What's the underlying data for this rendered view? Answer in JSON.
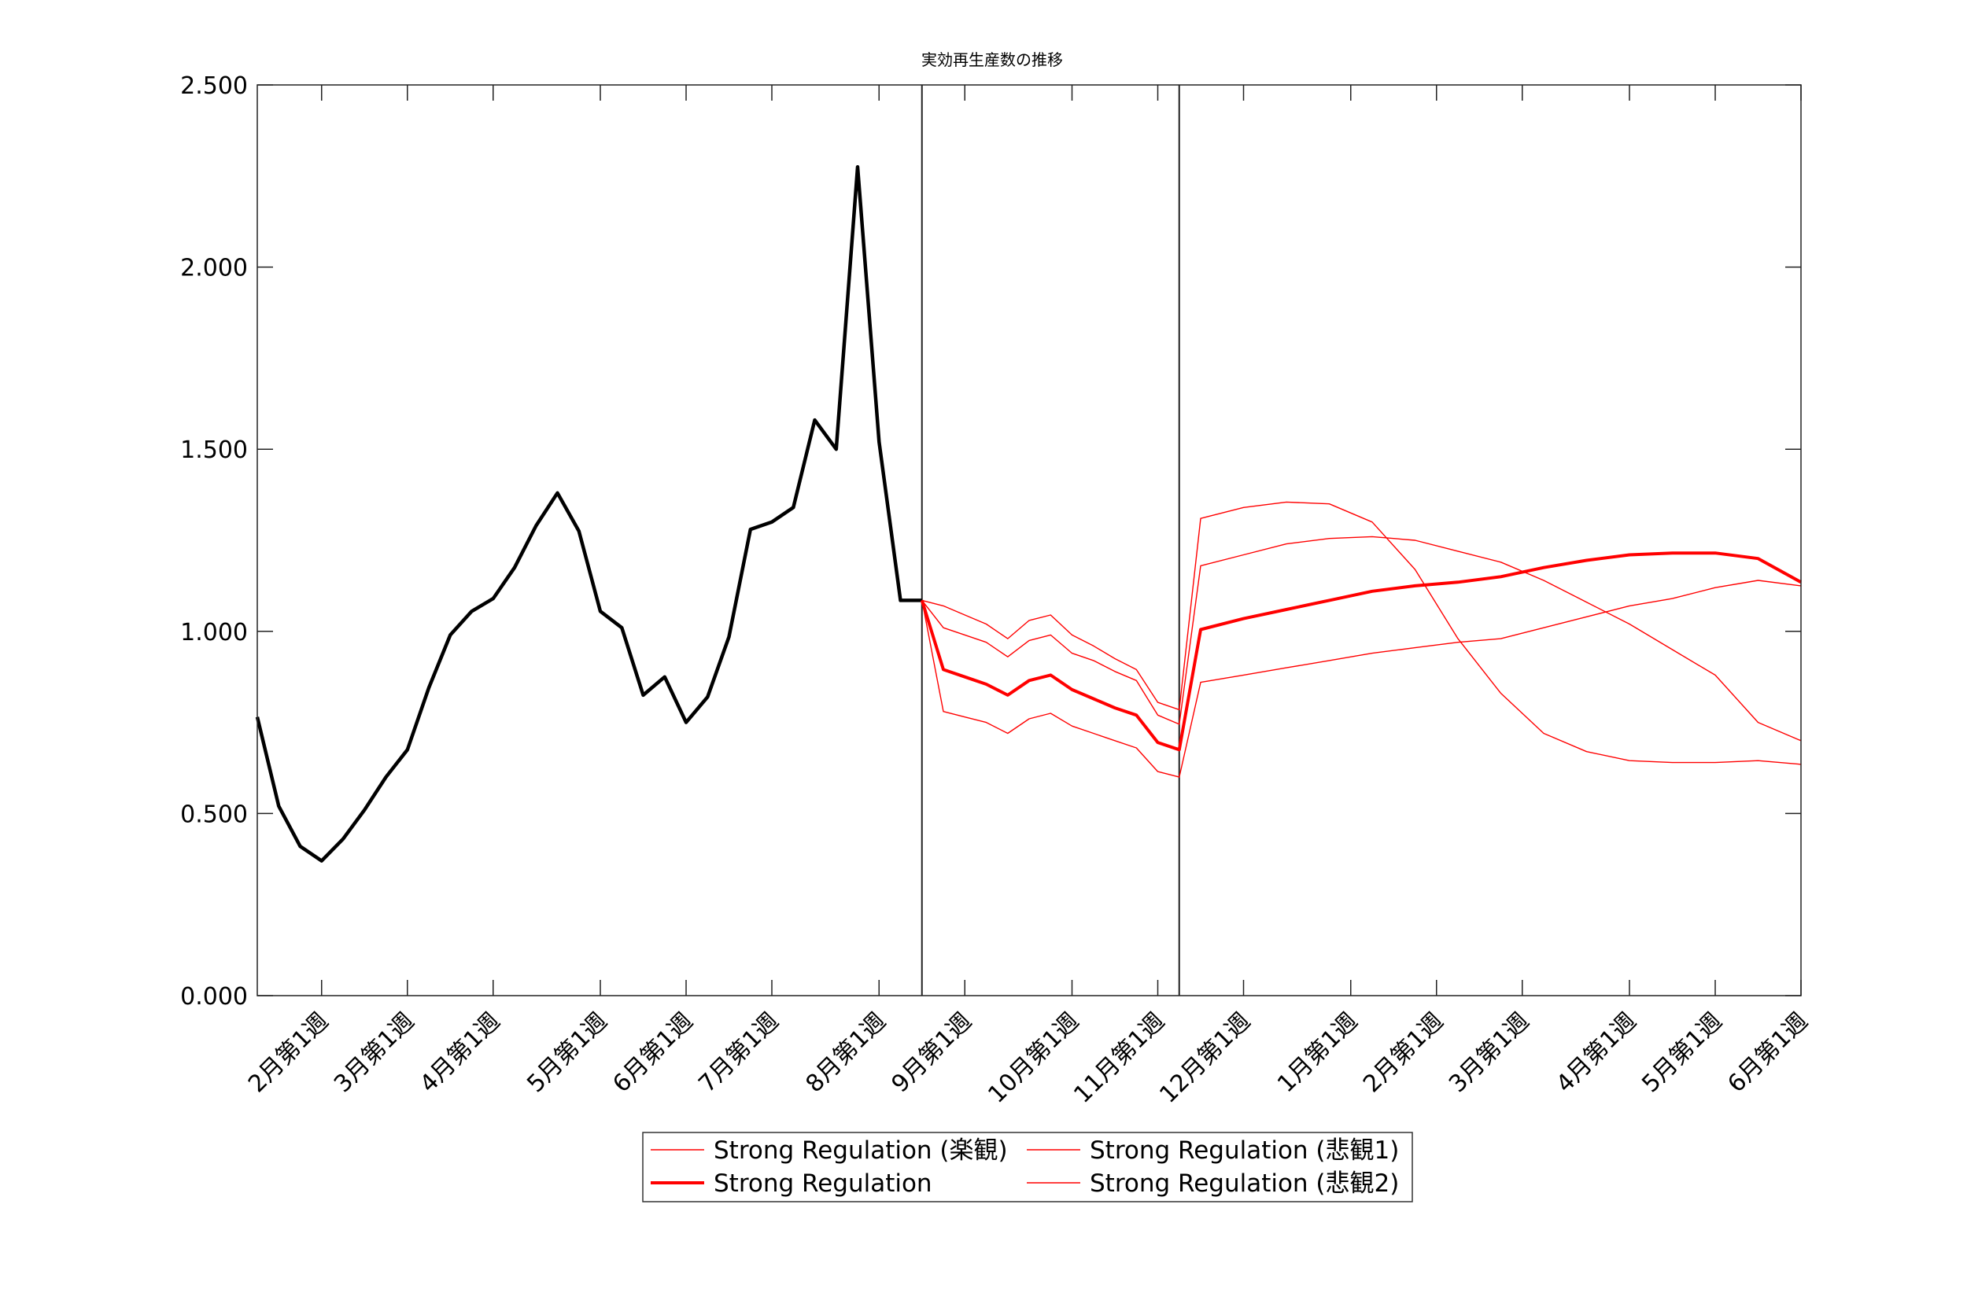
{
  "chart_data": {
    "type": "line",
    "title": "実効再生産数の推移",
    "ylim": [
      0,
      2.5
    ],
    "y_ticks": [
      "0.000",
      "0.500",
      "1.000",
      "1.500",
      "2.000",
      "2.500"
    ],
    "y_tick_values": [
      0,
      0.5,
      1.0,
      1.5,
      2.0,
      2.5
    ],
    "xlim": [
      0,
      72
    ],
    "x_ticks": [
      {
        "x": 3,
        "label": "2月第1週"
      },
      {
        "x": 7,
        "label": "3月第1週"
      },
      {
        "x": 11,
        "label": "4月第1週"
      },
      {
        "x": 16,
        "label": "5月第1週"
      },
      {
        "x": 20,
        "label": "6月第1週"
      },
      {
        "x": 24,
        "label": "7月第1週"
      },
      {
        "x": 29,
        "label": "8月第1週"
      },
      {
        "x": 33,
        "label": "9月第1週"
      },
      {
        "x": 38,
        "label": "10月第1週"
      },
      {
        "x": 42,
        "label": "11月第1週"
      },
      {
        "x": 46,
        "label": "12月第1週"
      },
      {
        "x": 51,
        "label": "1月第1週"
      },
      {
        "x": 55,
        "label": "2月第1週"
      },
      {
        "x": 59,
        "label": "3月第1週"
      },
      {
        "x": 64,
        "label": "4月第1週"
      },
      {
        "x": 68,
        "label": "5月第1週"
      },
      {
        "x": 72,
        "label": "6月第1週"
      }
    ],
    "vlines": [
      31,
      43
    ],
    "grid": false,
    "legend_position": "bottom-center",
    "series": [
      {
        "style": "history",
        "color": "#000000",
        "x": [
          0,
          1,
          2,
          3,
          4,
          5,
          6,
          7,
          8,
          9,
          10,
          11,
          12,
          13,
          14,
          15,
          16,
          17,
          18,
          19,
          20,
          21,
          22,
          23,
          24,
          25,
          26,
          27,
          28,
          29,
          30,
          31
        ],
        "values": [
          0.765,
          0.52,
          0.41,
          0.37,
          0.43,
          0.51,
          0.6,
          0.675,
          0.845,
          0.99,
          1.055,
          1.09,
          1.175,
          1.29,
          1.38,
          1.275,
          1.055,
          1.01,
          0.825,
          0.875,
          0.75,
          0.82,
          0.985,
          1.28,
          1.3,
          1.34,
          1.58,
          1.5,
          2.275,
          1.52,
          1.085,
          1.085
        ]
      },
      {
        "name": "Strong Regulation (楽観)",
        "style": "thin",
        "color": "#ff0000",
        "x": [
          31,
          32,
          33,
          34,
          35,
          36,
          37,
          38,
          39,
          40,
          41,
          42,
          43,
          44,
          46,
          48,
          50,
          52,
          54,
          56,
          58,
          60,
          62,
          64,
          66,
          68,
          70,
          72
        ],
        "values": [
          1.085,
          0.78,
          0.765,
          0.75,
          0.72,
          0.76,
          0.775,
          0.74,
          0.72,
          0.7,
          0.68,
          0.615,
          0.6,
          0.86,
          0.88,
          0.9,
          0.92,
          0.94,
          0.955,
          0.97,
          0.98,
          1.01,
          1.04,
          1.07,
          1.09,
          1.12,
          1.14,
          1.125
        ]
      },
      {
        "name": "Strong Regulation",
        "style": "thick",
        "color": "#ff0000",
        "x": [
          31,
          32,
          33,
          34,
          35,
          36,
          37,
          38,
          39,
          40,
          41,
          42,
          43,
          44,
          46,
          48,
          50,
          52,
          54,
          56,
          58,
          60,
          62,
          64,
          66,
          68,
          70,
          72
        ],
        "values": [
          1.085,
          0.895,
          0.875,
          0.855,
          0.825,
          0.865,
          0.88,
          0.84,
          0.815,
          0.79,
          0.77,
          0.695,
          0.675,
          1.005,
          1.035,
          1.06,
          1.085,
          1.11,
          1.125,
          1.135,
          1.15,
          1.175,
          1.195,
          1.21,
          1.215,
          1.215,
          1.2,
          1.135
        ]
      },
      {
        "name": "Strong Regulation (悲観1)",
        "style": "thin",
        "color": "#ff0000",
        "x": [
          31,
          32,
          33,
          34,
          35,
          36,
          37,
          38,
          39,
          40,
          41,
          42,
          43,
          44,
          46,
          48,
          50,
          52,
          54,
          56,
          58,
          60,
          62,
          64,
          66,
          68,
          70,
          72
        ],
        "values": [
          1.085,
          1.01,
          0.99,
          0.97,
          0.93,
          0.975,
          0.99,
          0.94,
          0.92,
          0.89,
          0.865,
          0.77,
          0.745,
          1.18,
          1.21,
          1.24,
          1.255,
          1.26,
          1.25,
          1.22,
          1.19,
          1.14,
          1.08,
          1.02,
          0.95,
          0.88,
          0.75,
          0.7
        ]
      },
      {
        "name": "Strong Regulation (悲観2)",
        "style": "thin",
        "color": "#ff0000",
        "x": [
          31,
          32,
          33,
          34,
          35,
          36,
          37,
          38,
          39,
          40,
          41,
          42,
          43,
          44,
          46,
          48,
          50,
          52,
          54,
          56,
          58,
          60,
          62,
          64,
          66,
          68,
          70,
          72
        ],
        "values": [
          1.085,
          1.07,
          1.045,
          1.02,
          0.98,
          1.03,
          1.045,
          0.99,
          0.96,
          0.925,
          0.895,
          0.805,
          0.785,
          1.31,
          1.34,
          1.355,
          1.35,
          1.3,
          1.17,
          0.98,
          0.83,
          0.72,
          0.67,
          0.645,
          0.64,
          0.64,
          0.645,
          0.635
        ]
      }
    ],
    "legend": [
      {
        "label": "Strong Regulation (楽観)",
        "style": "thin"
      },
      {
        "label": "Strong Regulation (悲観1)",
        "style": "thin"
      },
      {
        "label": "Strong Regulation",
        "style": "thick"
      },
      {
        "label": "Strong Regulation (悲観2)",
        "style": "thin"
      }
    ]
  }
}
